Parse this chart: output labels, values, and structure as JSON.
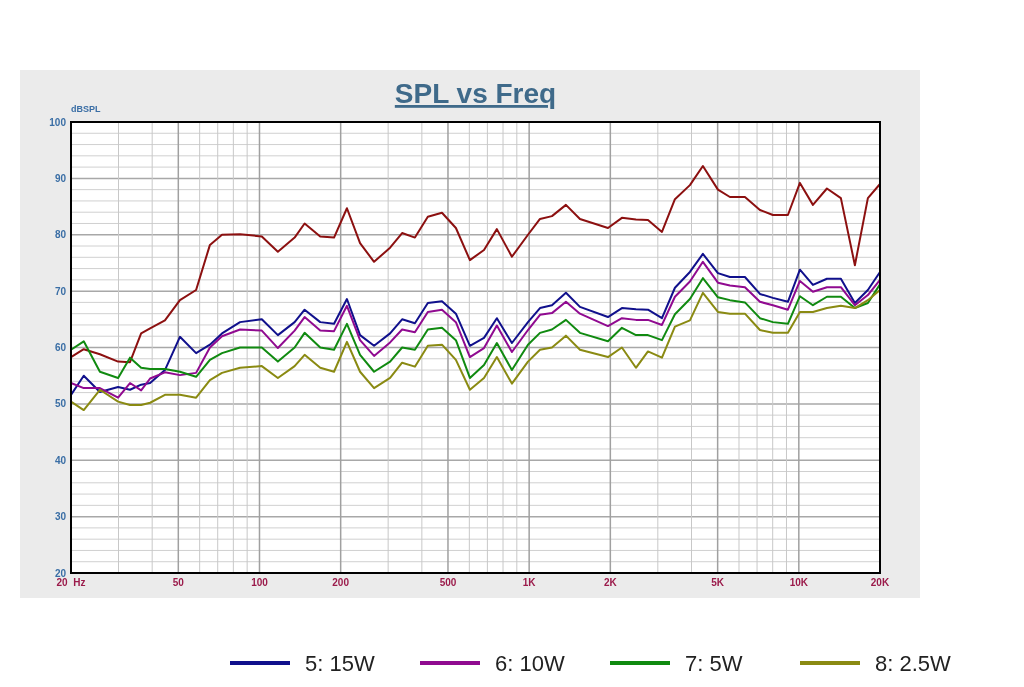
{
  "chart_data": {
    "type": "line",
    "title": "SPL vs Freq",
    "ylabel": "dBSPL",
    "log": "x",
    "grid": true,
    "legend": "bottom",
    "marker": "none",
    "line_style": "solid",
    "xlim": [
      20,
      20000
    ],
    "ylim": [
      20,
      100
    ],
    "xticks": [
      {
        "value": 20,
        "label": "20  Hz"
      },
      {
        "value": 30,
        "label": null
      },
      {
        "value": 40,
        "label": null
      },
      50,
      {
        "value": 60,
        "label": null
      },
      {
        "value": 70,
        "label": null
      },
      {
        "value": 80,
        "label": null
      },
      {
        "value": 90,
        "label": null
      },
      100,
      200,
      {
        "value": 300,
        "label": null
      },
      {
        "value": 400,
        "label": null
      },
      500,
      {
        "value": 600,
        "label": null
      },
      {
        "value": 700,
        "label": null
      },
      {
        "value": 800,
        "label": null
      },
      {
        "value": 900,
        "label": null
      },
      {
        "value": 1000,
        "label": "1K"
      },
      {
        "value": 2000,
        "label": "2K"
      },
      {
        "value": 3000,
        "label": null
      },
      {
        "value": 4000,
        "label": null
      },
      {
        "value": 5000,
        "label": "5K"
      },
      {
        "value": 6000,
        "label": null
      },
      {
        "value": 7000,
        "label": null
      },
      {
        "value": 8000,
        "label": null
      },
      {
        "value": 9000,
        "label": null
      },
      {
        "value": 10000,
        "label": "10K"
      },
      {
        "value": 20000,
        "label": "20K"
      }
    ],
    "yticks": [
      20,
      {
        "value": 22,
        "label": null
      },
      {
        "value": 24,
        "label": null
      },
      {
        "value": 26,
        "label": null
      },
      {
        "value": 28,
        "label": null
      },
      30,
      {
        "value": 32,
        "label": null
      },
      {
        "value": 34,
        "label": null
      },
      {
        "value": 36,
        "label": null
      },
      {
        "value": 38,
        "label": null
      },
      40,
      {
        "value": 42,
        "label": null
      },
      {
        "value": 44,
        "label": null
      },
      {
        "value": 46,
        "label": null
      },
      {
        "value": 48,
        "label": null
      },
      50,
      {
        "value": 52,
        "label": null
      },
      {
        "value": 54,
        "label": null
      },
      {
        "value": 56,
        "label": null
      },
      {
        "value": 58,
        "label": null
      },
      60,
      {
        "value": 62,
        "label": null
      },
      {
        "value": 64,
        "label": null
      },
      {
        "value": 66,
        "label": null
      },
      {
        "value": 68,
        "label": null
      },
      70,
      {
        "value": 72,
        "label": null
      },
      {
        "value": 74,
        "label": null
      },
      {
        "value": 76,
        "label": null
      },
      {
        "value": 78,
        "label": null
      },
      80,
      {
        "value": 82,
        "label": null
      },
      {
        "value": 84,
        "label": null
      },
      {
        "value": 86,
        "label": null
      },
      {
        "value": 88,
        "label": null
      },
      90,
      {
        "value": 92,
        "label": null
      },
      {
        "value": 94,
        "label": null
      },
      {
        "value": 96,
        "label": null
      },
      {
        "value": 98,
        "label": null
      },
      100
    ],
    "x": [
      20,
      22.3,
      25.6,
      29.9,
      33.1,
      36.4,
      39.3,
      44.6,
      50.7,
      58.2,
      65.5,
      72.6,
      84.7,
      102,
      117,
      135,
      147,
      168,
      189,
      211,
      236,
      266,
      305,
      338,
      377,
      421,
      475,
      535,
      603,
      680,
      759,
      863,
      990,
      1097,
      1215,
      1369,
      1543,
      1960,
      2208,
      2489,
      2758,
      3108,
      3472,
      3946,
      4408,
      5012,
      5552,
      6312,
      7174,
      8014,
      9110,
      10094,
      11280,
      12712,
      14320,
      16140,
      18034,
      20000
    ],
    "series": [
      {
        "color": "#8c1010",
        "values": [
          58.3,
          59.7,
          58.8,
          57.5,
          57.4,
          62.5,
          63.4,
          64.8,
          68.4,
          70.2,
          78.2,
          80,
          80.1,
          79.7,
          77,
          79.5,
          82,
          79.7,
          79.5,
          84.7,
          78.5,
          75.2,
          77.7,
          80.3,
          79.5,
          83.2,
          83.9,
          81.2,
          75.5,
          77.3,
          81,
          76.1,
          80,
          82.8,
          83.3,
          85.3,
          82.8,
          81.2,
          83,
          82.7,
          82.6,
          80.5,
          86.3,
          88.8,
          92.2,
          88,
          86.7,
          86.7,
          84.4,
          83.5,
          83.5,
          89.2,
          85.3,
          88.2,
          86.5,
          74.6,
          86.5,
          89
        ]
      },
      {
        "name": "5: 15W",
        "color": "#10108c",
        "values": [
          51.6,
          55,
          52.1,
          53,
          52.5,
          53.4,
          53.7,
          56,
          61.9,
          59,
          60.5,
          62.5,
          64.5,
          65,
          62.2,
          64.5,
          66.7,
          64.5,
          64.2,
          68.6,
          62.2,
          60.3,
          62.5,
          65,
          64.3,
          67.9,
          68.2,
          66,
          60.3,
          61.7,
          65.2,
          60.8,
          64.5,
          67,
          67.5,
          69.7,
          67.2,
          65.4,
          67,
          66.8,
          66.7,
          65.2,
          70.6,
          73.4,
          76.6,
          73.2,
          72.5,
          72.5,
          69.5,
          68.8,
          68.1,
          73.8,
          71.1,
          72.2,
          72.2,
          67.9,
          70.2,
          73.4
        ]
      },
      {
        "name": "6: 10W",
        "color": "#900a90",
        "values": [
          53.7,
          52.8,
          52.8,
          51.1,
          53.7,
          52.4,
          54.5,
          55.6,
          55.1,
          55.5,
          60,
          62,
          63.2,
          63,
          59.9,
          63,
          65.4,
          63,
          62.9,
          67.4,
          61.3,
          58.5,
          60.9,
          63.2,
          62.7,
          66.3,
          66.7,
          64.5,
          58.3,
          59.9,
          63.9,
          59.2,
          63.1,
          65.8,
          66.1,
          68.1,
          66,
          63.8,
          65.2,
          64.9,
          64.9,
          64,
          69,
          71.7,
          75.2,
          71.5,
          71,
          70.7,
          68.1,
          67.5,
          66.7,
          71.8,
          69.9,
          70.7,
          70.7,
          67.5,
          69.3,
          72
        ]
      },
      {
        "name": "7: 5W",
        "color": "#108a10",
        "values": [
          59.6,
          61.1,
          55.7,
          54.6,
          58.2,
          56.4,
          56.2,
          56.2,
          55.7,
          54.8,
          57.8,
          59,
          60,
          60,
          57.5,
          60,
          62.6,
          60,
          59.6,
          64.2,
          58.7,
          55.7,
          57.5,
          60,
          59.6,
          63.2,
          63.5,
          61.3,
          54.6,
          56.9,
          60.8,
          56,
          60.5,
          62.6,
          63.2,
          64.9,
          62.6,
          61.1,
          63.5,
          62.2,
          62.2,
          61.3,
          65.9,
          68.6,
          72.3,
          68.9,
          68.4,
          68,
          65.2,
          64.5,
          64.2,
          69.1,
          67.5,
          69,
          69,
          67,
          67.9,
          71.2
        ]
      },
      {
        "name": "8: 2.5W",
        "color": "#8a8a12",
        "values": [
          50.4,
          48.9,
          52.5,
          50.4,
          49.8,
          49.8,
          50.2,
          51.6,
          51.6,
          51.1,
          54.2,
          55.5,
          56.4,
          56.7,
          54.6,
          56.7,
          58.7,
          56.4,
          55.7,
          61,
          55.7,
          52.8,
          54.6,
          57.3,
          56.6,
          60.3,
          60.5,
          57.8,
          52.5,
          54.6,
          58.3,
          53.6,
          57.5,
          59.6,
          60,
          62.1,
          59.6,
          58.3,
          60,
          56.4,
          59.3,
          58.2,
          63.7,
          64.8,
          69.7,
          66.3,
          66,
          66,
          63.1,
          62.6,
          62.6,
          66.3,
          66.3,
          67,
          67.4,
          67,
          68.4,
          70.2
        ]
      }
    ]
  }
}
